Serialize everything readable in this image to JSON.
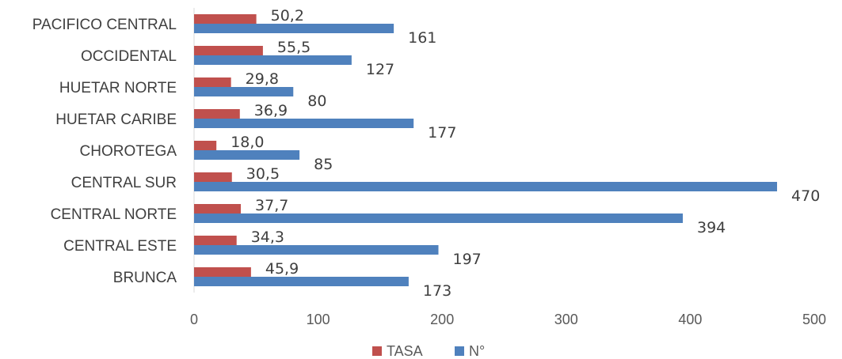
{
  "chart_data": {
    "type": "bar",
    "orientation": "horizontal",
    "title": "",
    "xlabel": "",
    "ylabel": "",
    "xlim": [
      0,
      500
    ],
    "x_ticks": [
      "0",
      "100",
      "200",
      "300",
      "400",
      "500"
    ],
    "grid": false,
    "legend_position": "bottom",
    "categories": [
      "BRUNCA",
      "CENTRAL ESTE",
      "CENTRAL NORTE",
      "CENTRAL SUR",
      "CHOROTEGA",
      "HUETAR CARIBE",
      "HUETAR NORTE",
      "OCCIDENTAL",
      "PACIFICO CENTRAL"
    ],
    "series": [
      {
        "name": "TASA",
        "color": "#c0504d",
        "values": [
          45.9,
          34.3,
          37.7,
          30.5,
          18.0,
          36.9,
          29.8,
          55.5,
          50.2
        ],
        "labels": [
          "45,9",
          "34,3",
          "37,7",
          "30,5",
          "18,0",
          "36,9",
          "29,8",
          "55,5",
          "50,2"
        ]
      },
      {
        "name": "N°",
        "color": "#4f81bd",
        "values": [
          173,
          197,
          394,
          470,
          85,
          177,
          80,
          127,
          161
        ],
        "labels": [
          "173",
          "197",
          "394",
          "470",
          "85",
          "177",
          "80",
          "127",
          "161"
        ]
      }
    ]
  }
}
